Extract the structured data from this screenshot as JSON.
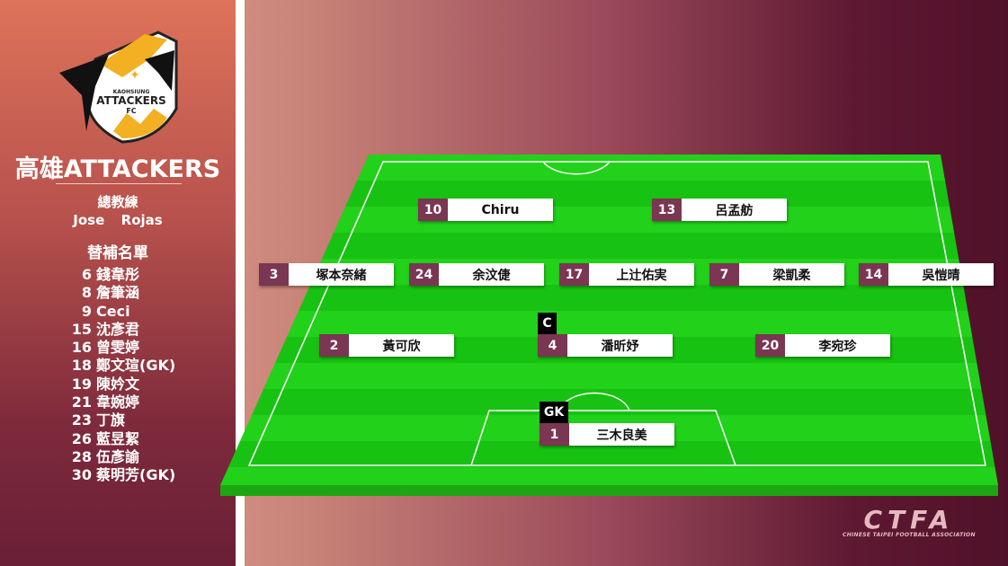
{
  "team": {
    "name": "高雄ATTACKERS",
    "logo_text": "KAOHSIUNG ATTACKERS FC"
  },
  "coach": {
    "title": "總教練",
    "name": "Jose  Rojas"
  },
  "subs": {
    "title": "替補名單",
    "players": [
      {
        "number": "6",
        "name": "錢韋彤"
      },
      {
        "number": "8",
        "name": "詹筆涵"
      },
      {
        "number": "9",
        "name": "Ceci"
      },
      {
        "number": "15",
        "name": "沈彥君"
      },
      {
        "number": "16",
        "name": "曾雯婷"
      },
      {
        "number": "18",
        "name": "鄭文瑄(GK)"
      },
      {
        "number": "19",
        "name": "陳妗文"
      },
      {
        "number": "21",
        "name": "韋婉婷"
      },
      {
        "number": "23",
        "name": "丁旗"
      },
      {
        "number": "26",
        "name": "藍昱絜"
      },
      {
        "number": "28",
        "name": "伍彥諭"
      },
      {
        "number": "30",
        "name": "蔡明芳(GK)"
      }
    ]
  },
  "lineup": [
    {
      "number": "10",
      "name": "Chiru"
    },
    {
      "number": "13",
      "name": "呂孟舫"
    },
    {
      "number": "3",
      "name": "塚本奈緒"
    },
    {
      "number": "24",
      "name": "余汶倢"
    },
    {
      "number": "17",
      "name": "上辻佑実"
    },
    {
      "number": "7",
      "name": "梁凱柔"
    },
    {
      "number": "14",
      "name": "吳愷晴"
    },
    {
      "number": "2",
      "name": "黃可欣"
    },
    {
      "number": "4",
      "name": "潘昕妤"
    },
    {
      "number": "20",
      "name": "李宛珍"
    },
    {
      "number": "1",
      "name": "三木良美"
    }
  ],
  "badges": {
    "captain": "C",
    "goalkeeper": "GK"
  },
  "footer": {
    "logo": "CTFA",
    "logo_sub": "CHINESE TAIPEI FOOTBALL ASSOCIATION"
  },
  "colors": {
    "number_box": "#7a3652",
    "pitch": "#22d11a",
    "sidebar_top": "#de735a",
    "sidebar_bottom": "#6a1f36"
  }
}
